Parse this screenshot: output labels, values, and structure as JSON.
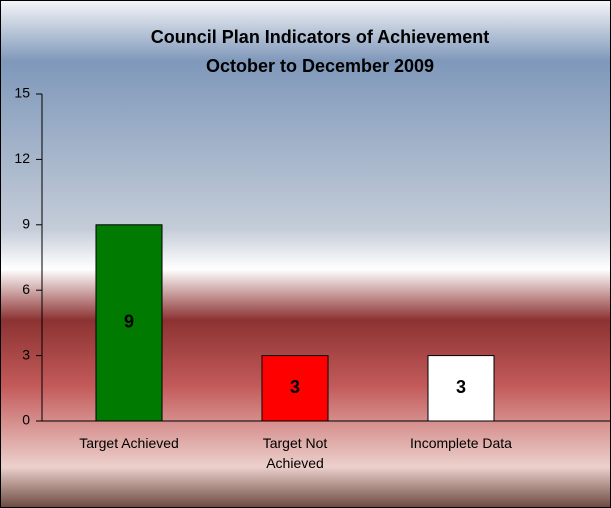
{
  "chart_data": {
    "type": "bar",
    "title": "Council Plan Indicators of Achievement",
    "subtitle": "October to December 2009",
    "categories": [
      "Target Achieved",
      "Target Not Achieved",
      "Incomplete Data"
    ],
    "values": [
      9,
      3,
      3
    ],
    "colors": [
      "#007a00",
      "#ff0000",
      "#ffffff"
    ],
    "ylim": [
      0,
      15
    ],
    "yticks": [
      0,
      3,
      6,
      9,
      12,
      15
    ],
    "grid": false
  }
}
